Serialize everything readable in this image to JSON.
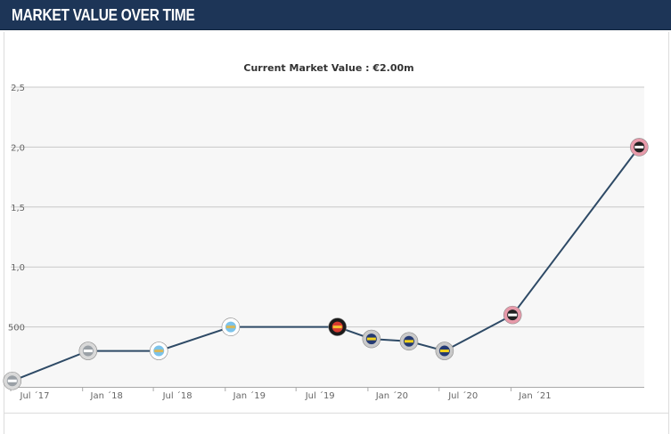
{
  "header": {
    "title": "MARKET VALUE OVER TIME"
  },
  "chart_data": {
    "type": "line",
    "title": "Current Market Value : €2.00m",
    "xlabel": "",
    "ylabel": "",
    "x_ticks": [
      "Jul ´17",
      "Jan ´18",
      "Jul ´18",
      "Jan ´19",
      "Jul ´19",
      "Jan ´20",
      "Jul ´20",
      "Jan ´21"
    ],
    "y_ticks": [
      "500",
      "1,0",
      "1,5",
      "2,0",
      "2,5"
    ],
    "y_tick_values": [
      0.5,
      1.0,
      1.5,
      2.0,
      2.5
    ],
    "y_unit": "€m",
    "xlim": [
      "2017-07-01",
      "2021-12-08"
    ],
    "ylim": [
      0,
      2.5
    ],
    "grid": true,
    "legend": "none",
    "series": [
      {
        "x": [
          "2017-07-05",
          "2018-01-15",
          "2018-07-15",
          "2019-01-15",
          "2019-10-15",
          "2020-01-10",
          "2020-04-15",
          "2020-07-15",
          "2021-01-05",
          "2021-11-25"
        ],
        "values": [
          0.05,
          0.3,
          0.3,
          0.5,
          0.5,
          0.4,
          0.38,
          0.3,
          0.6,
          2.0
        ],
        "club_badge": [
          "gray-club-badge",
          "gray-club-badge",
          "light-blue-club-badge",
          "light-blue-club-badge",
          "black-red-club-badge",
          "yellow-navy-club-badge",
          "yellow-navy-club-badge",
          "yellow-navy-club-badge",
          "pink-black-club-badge",
          "pink-black-club-badge"
        ]
      }
    ],
    "colors": {
      "line": "#2e4a66",
      "grid": "#c8c8c8",
      "plot_bg": "#f7f7f7",
      "header_bg": "#1d3557"
    }
  }
}
